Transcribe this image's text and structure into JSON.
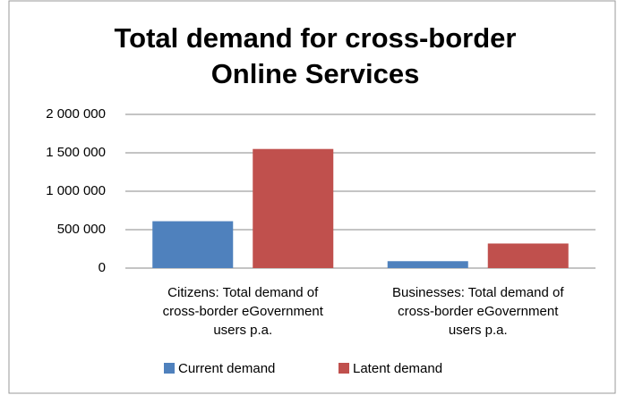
{
  "chart_data": {
    "type": "bar",
    "title": "Total demand for cross-border Online Services",
    "categories": [
      "Citizens: Total demand of cross-border eGovernment users p.a.",
      "Businesses: Total demand of cross-border eGovernment users p.a."
    ],
    "series": [
      {
        "name": "Current demand",
        "color": "#4f81bd",
        "values": [
          610000,
          90000
        ]
      },
      {
        "name": "Latent demand",
        "color": "#c0504d",
        "values": [
          1550000,
          320000
        ]
      }
    ],
    "ylim": [
      0,
      2000000
    ],
    "yticks": [
      0,
      {
        "value": 500000,
        "label": "500 000"
      },
      {
        "value": 1000000,
        "label": "1 000 000"
      },
      {
        "value": 1500000,
        "label": "1 500 000"
      },
      {
        "value": 2000000,
        "label": "2 000 000"
      }
    ],
    "grid": true,
    "legend": "bottom"
  }
}
